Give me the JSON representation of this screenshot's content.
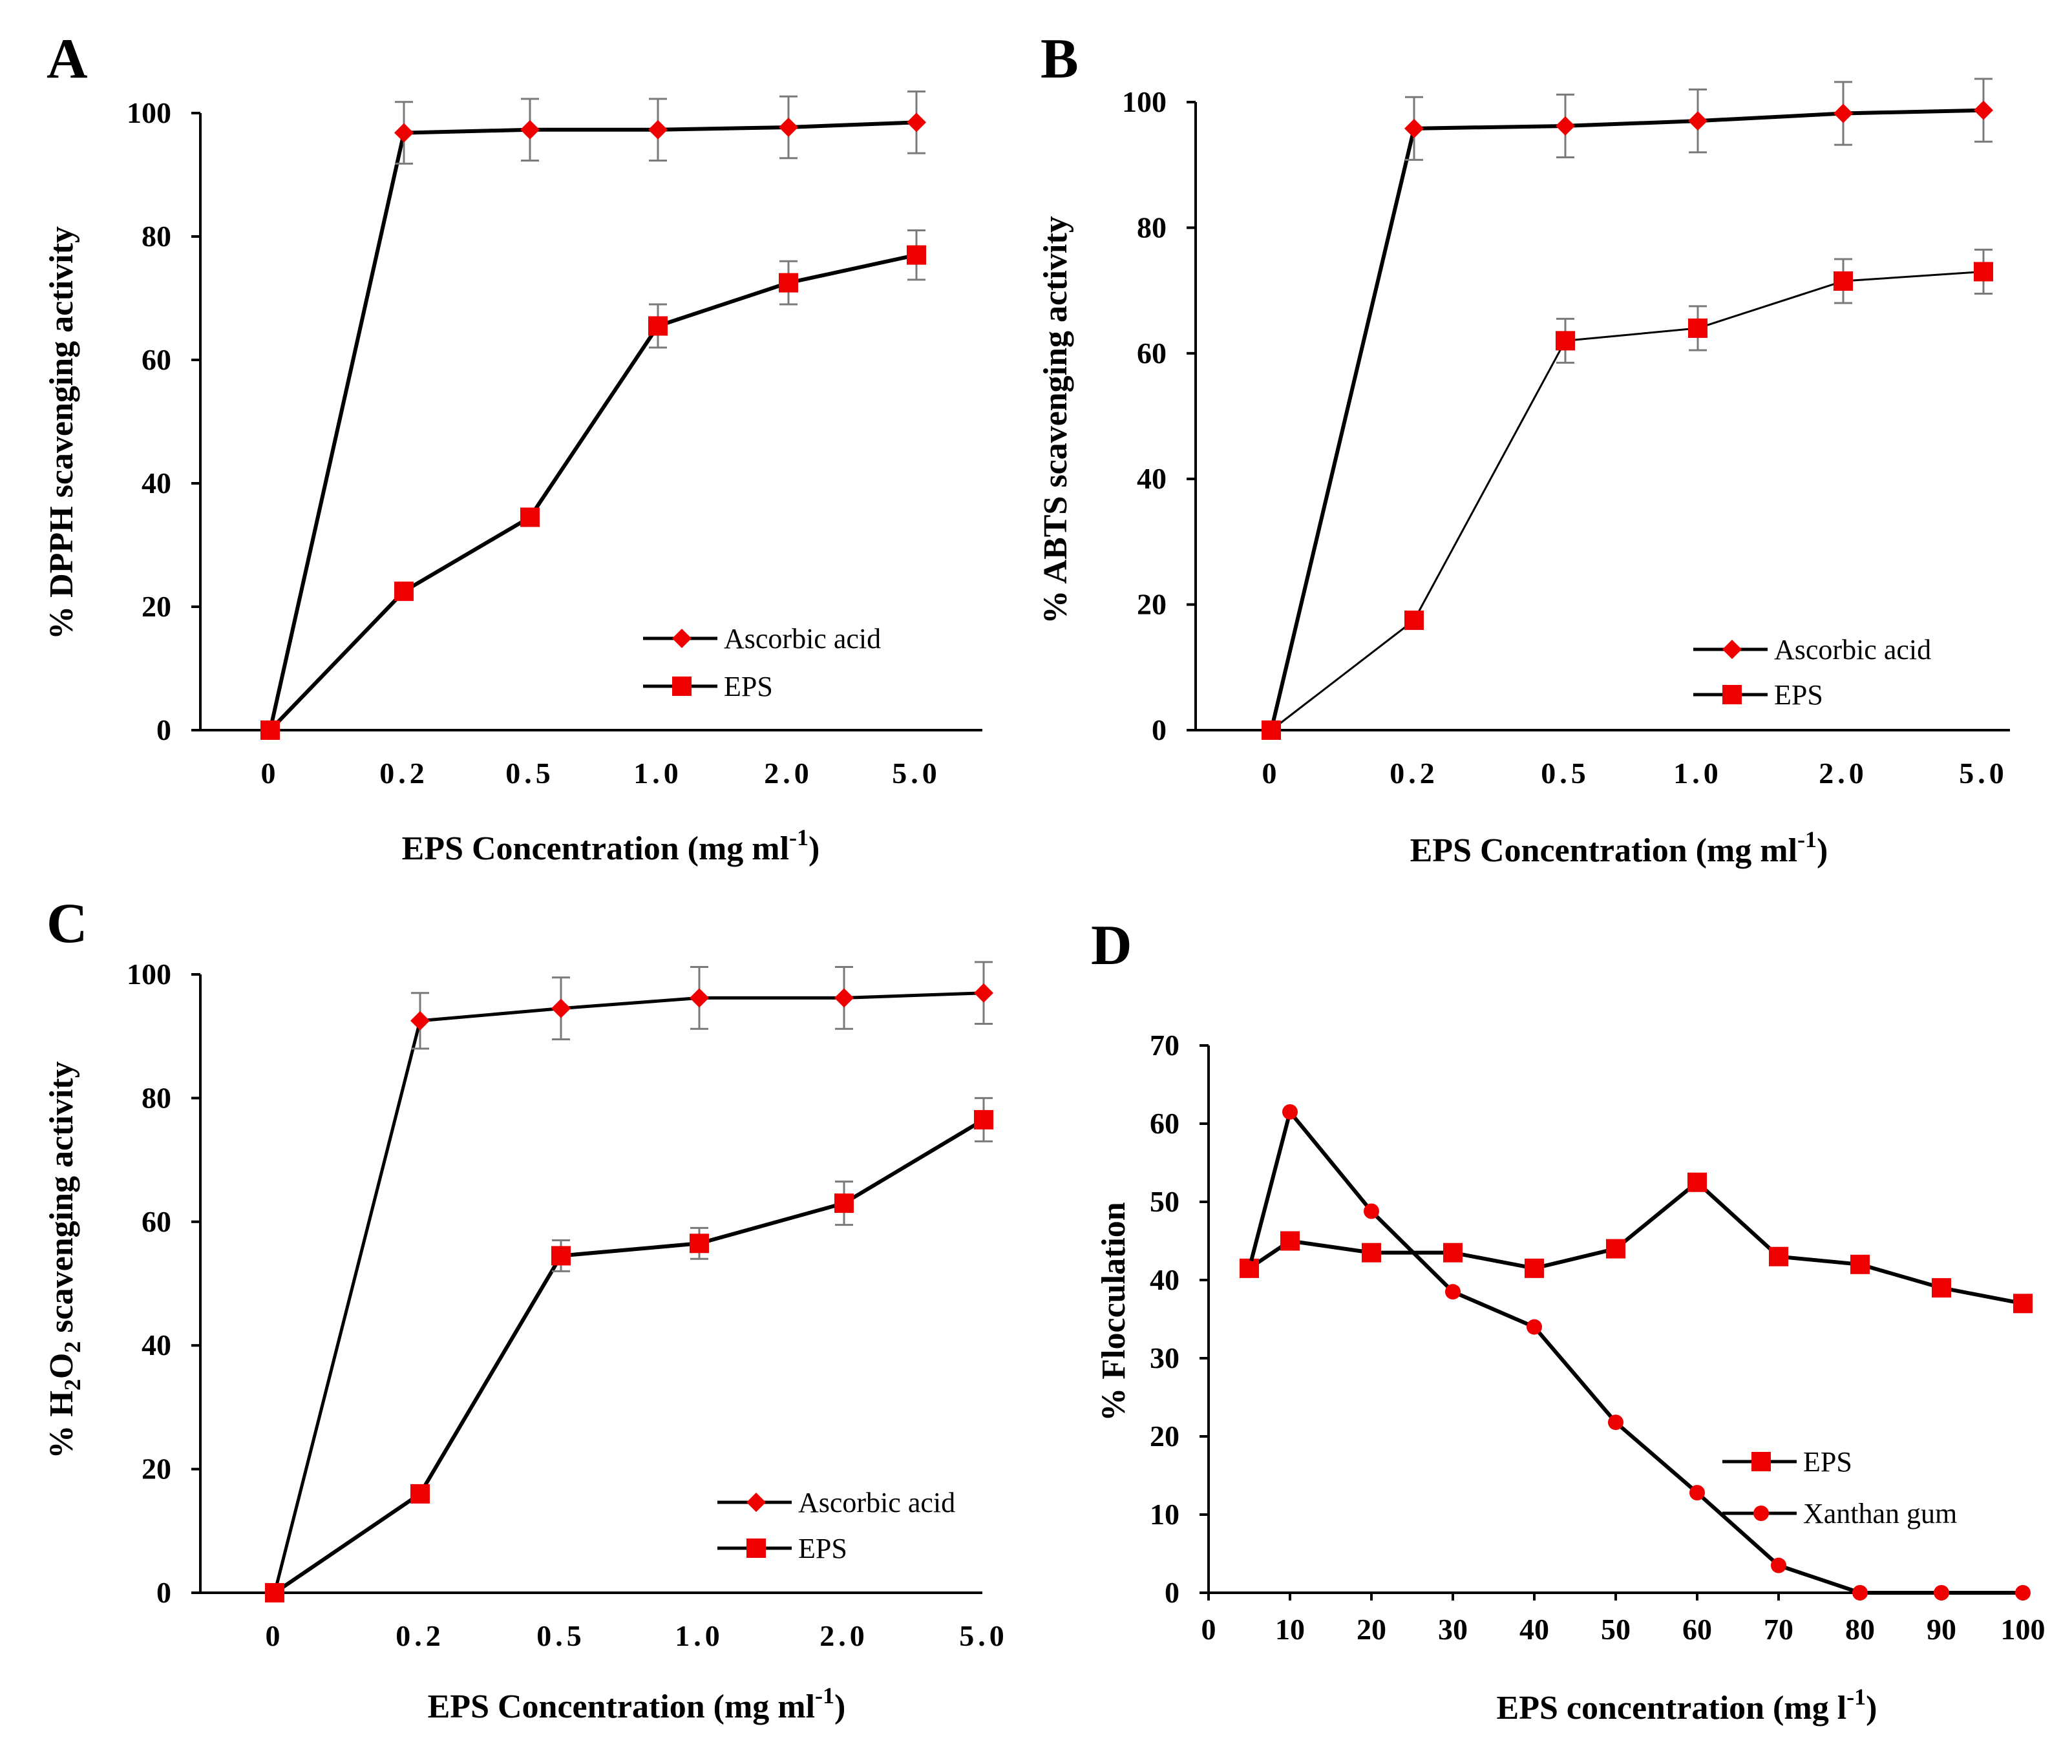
{
  "chart_data": [
    {
      "panel": "A",
      "type": "line",
      "title": "",
      "xlabel": "EPS Concentration  (mg ml",
      "xlabel_sup": "-1",
      "xlabel_tail": ")",
      "ylabel": "% DPPH  scavenging activity",
      "categories": [
        "0",
        "0.2",
        "0.5",
        "1.0",
        "2.0",
        "5.0"
      ],
      "ylim": [
        0,
        100
      ],
      "yticks": [
        "0",
        "20",
        "40",
        "60",
        "80",
        "100"
      ],
      "legend_position": "bottom-right",
      "series": [
        {
          "name": "Ascorbic acid",
          "marker": "diamond",
          "values": [
            0,
            96.8,
            97.3,
            97.3,
            97.7,
            98.5
          ],
          "errors": [
            0,
            5,
            5,
            5,
            5,
            5
          ]
        },
        {
          "name": "EPS",
          "marker": "square",
          "values": [
            0,
            22.5,
            34.5,
            65.5,
            72.5,
            77
          ],
          "errors": [
            0,
            0,
            0,
            3.5,
            3.5,
            4
          ]
        }
      ]
    },
    {
      "panel": "B",
      "type": "line",
      "title": "",
      "xlabel": "EPS Concentration  (mg ml",
      "xlabel_sup": "-1",
      "xlabel_tail": ")",
      "ylabel": "% ABTS  scavenging activity",
      "categories": [
        "0",
        "0.2",
        "0.5",
        "1.0",
        "2.0",
        "5.0"
      ],
      "ylim": [
        0,
        100
      ],
      "yticks": [
        "0",
        "20",
        "40",
        "60",
        "80",
        "100"
      ],
      "legend_position": "bottom-right",
      "series": [
        {
          "name": "Ascorbic acid",
          "marker": "diamond",
          "values": [
            0,
            95.8,
            96.2,
            97,
            98.2,
            98.7
          ],
          "errors": [
            0,
            5,
            5,
            5,
            5,
            5
          ]
        },
        {
          "name": "EPS",
          "marker": "square",
          "values": [
            0,
            17.5,
            62,
            64,
            71.5,
            73
          ],
          "errors": [
            0,
            0,
            3.5,
            3.5,
            3.5,
            3.5
          ]
        }
      ]
    },
    {
      "panel": "C",
      "type": "line",
      "title": "",
      "xlabel": "EPS Concentration  (mg ml",
      "xlabel_sup": "-1",
      "xlabel_tail": ")",
      "ylabel": "% H2O2 scavenging activity",
      "categories": [
        "0",
        "0.2",
        "0.5",
        "1.0",
        "2.0",
        "5.0"
      ],
      "ylim": [
        0,
        100
      ],
      "yticks": [
        "0",
        "20",
        "40",
        "60",
        "80",
        "100"
      ],
      "legend_position": "bottom-right",
      "series": [
        {
          "name": "Ascorbic acid",
          "marker": "diamond",
          "values": [
            0,
            92.5,
            94.5,
            96.2,
            96.2,
            97
          ],
          "errors": [
            0,
            4.5,
            5,
            5,
            5,
            5
          ]
        },
        {
          "name": "EPS",
          "marker": "square",
          "values": [
            0,
            16,
            54.5,
            56.5,
            63,
            76.5
          ],
          "errors": [
            0,
            0,
            2.5,
            2.5,
            3.5,
            3.5
          ]
        }
      ]
    },
    {
      "panel": "D",
      "type": "line",
      "title": "",
      "xlabel": "EPS concentration  (mg l",
      "xlabel_sup": "-1",
      "xlabel_tail": ")",
      "ylabel": "% Flocculation",
      "x": [
        5,
        10,
        20,
        30,
        40,
        50,
        60,
        70,
        80,
        90,
        100
      ],
      "xlim": [
        0,
        100
      ],
      "xticks": [
        "0",
        "10",
        "20",
        "30",
        "40",
        "50",
        "60",
        "70",
        "80",
        "90",
        "100"
      ],
      "ylim": [
        0,
        70
      ],
      "yticks": [
        "0",
        "10",
        "20",
        "30",
        "40",
        "50",
        "60",
        "70"
      ],
      "legend_position": "bottom-right",
      "series": [
        {
          "name": "EPS",
          "marker": "square",
          "values": [
            41.5,
            45,
            43.5,
            43.5,
            41.5,
            44,
            52.5,
            43,
            42,
            39,
            37
          ]
        },
        {
          "name": "Xanthan gum",
          "marker": "circle",
          "values": [
            41.5,
            61.5,
            48.8,
            38.5,
            34,
            21.8,
            12.8,
            3.5,
            0,
            0,
            0
          ]
        }
      ]
    }
  ]
}
